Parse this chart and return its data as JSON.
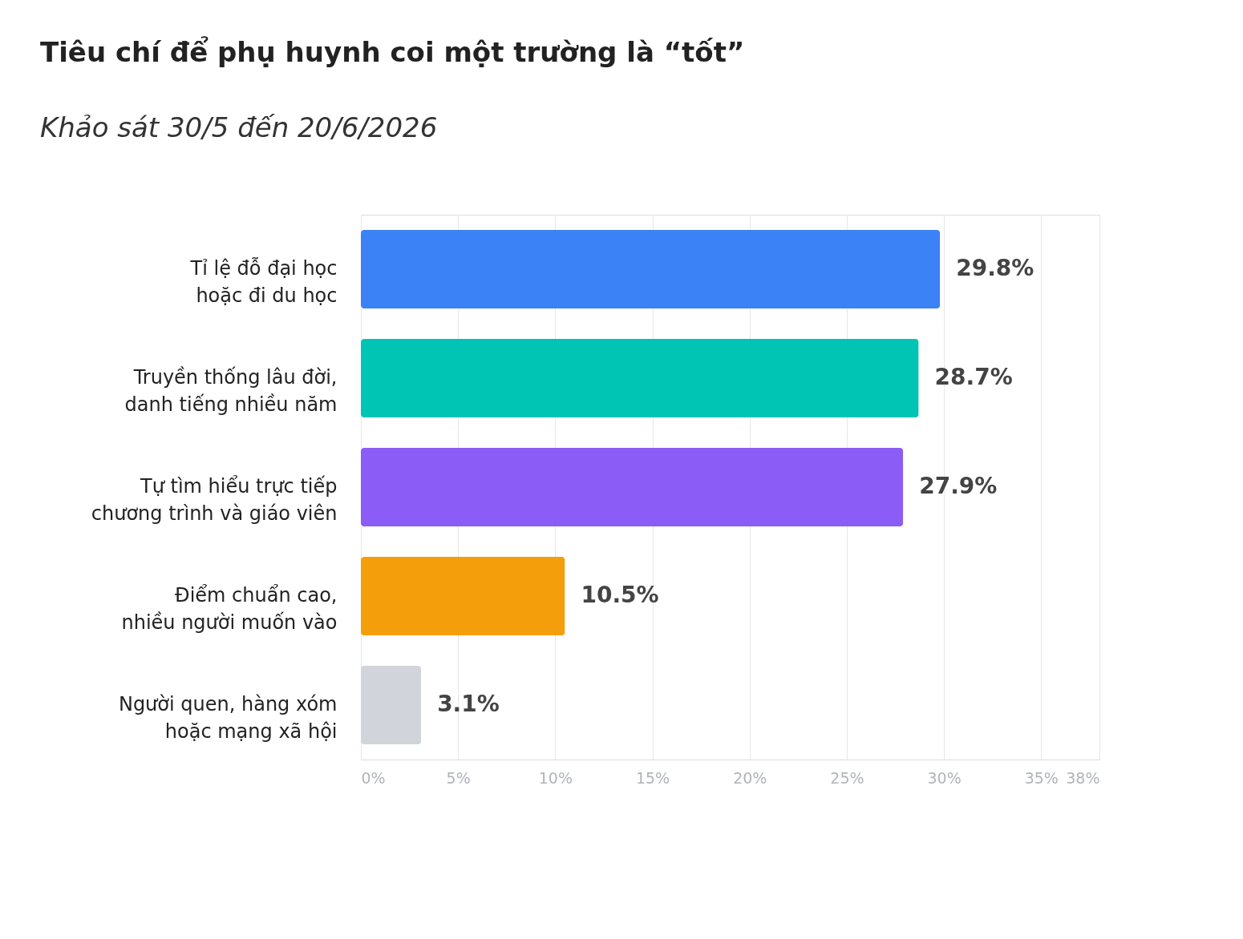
{
  "chart_data": {
    "type": "bar",
    "orientation": "horizontal",
    "title": "Tiêu chí để phụ huynh coi một trường là “tốt”",
    "subtitle": "Khảo sát 30/5 đến 20/6/2026",
    "categories": [
      "Tỉ lệ đỗ đại học\nhoặc đi du học",
      "Truyền thống lâu đời,\ndanh tiếng nhiều năm",
      "Tự tìm hiểu trực tiếp\nchương trình và giáo viên",
      "Điểm chuẩn cao,\nnhiều người muốn vào",
      "Người quen, hàng xóm\nhoặc mạng xã hội"
    ],
    "values": [
      29.8,
      28.7,
      27.9,
      10.5,
      3.1
    ],
    "colors": [
      "#3b82f6",
      "#00c4b4",
      "#8b5cf6",
      "#f59e0b",
      "#d1d5db"
    ],
    "value_labels": [
      "29.8%",
      "28.7%",
      "27.9%",
      "10.5%",
      "3.1%"
    ],
    "xlim": [
      0,
      38
    ],
    "xticks": [
      {
        "value": 0,
        "label": "0%"
      },
      {
        "value": 5,
        "label": "5%"
      },
      {
        "value": 10,
        "label": "10%"
      },
      {
        "value": 15,
        "label": "15%"
      },
      {
        "value": 20,
        "label": "20%"
      },
      {
        "value": 25,
        "label": "25%"
      },
      {
        "value": 30,
        "label": "30%"
      },
      {
        "value": 35,
        "label": "35%"
      },
      {
        "value": 38,
        "label": "38%"
      }
    ],
    "grid": "x"
  }
}
